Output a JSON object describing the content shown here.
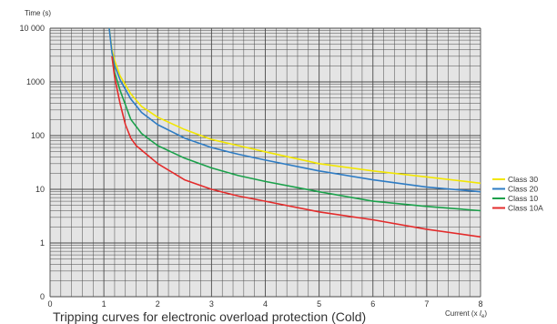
{
  "chart_data": {
    "type": "line",
    "title": "",
    "caption": "Tripping curves for electronic overload protection (Cold)",
    "xlabel": "Current (x Ie)",
    "xlabel_main": "Current (x ",
    "xlabel_sym": "I",
    "xlabel_sub": "e",
    "xlabel_end": ")",
    "ylabel": "Time (s)",
    "xlim": [
      0,
      8
    ],
    "y_scale": "log",
    "ylim": [
      1,
      10000
    ],
    "x_ticks": [
      "0",
      "1",
      "2",
      "3",
      "4",
      "5",
      "6",
      "7",
      "8"
    ],
    "y_ticks": [
      {
        "value": 1,
        "label": "1"
      },
      {
        "value": 10,
        "label": "10"
      },
      {
        "value": 100,
        "label": "100"
      },
      {
        "value": 1000,
        "label": "1000"
      },
      {
        "value": 10000,
        "label": "10 000"
      }
    ],
    "y_zero_label": "0",
    "grid": true,
    "legend_position": "right",
    "colors": {
      "background": "#e4e4e4",
      "grid": "#4a4a4a"
    },
    "series": [
      {
        "name": "Class 30",
        "color": "#f2e600",
        "x": [
          1.1,
          1.15,
          1.2,
          1.3,
          1.5,
          1.7,
          2,
          2.5,
          3,
          3.5,
          4,
          5,
          6,
          7,
          8
        ],
        "y": [
          10000,
          4000,
          2500,
          1300,
          600,
          350,
          220,
          130,
          85,
          65,
          50,
          30,
          22,
          17,
          13
        ]
      },
      {
        "name": "Class 20",
        "color": "#2e7cc4",
        "x": [
          1.1,
          1.15,
          1.2,
          1.3,
          1.5,
          1.7,
          2,
          2.5,
          3,
          3.5,
          4,
          5,
          6,
          7,
          8
        ],
        "y": [
          10000,
          3500,
          2000,
          1100,
          480,
          270,
          160,
          90,
          60,
          45,
          35,
          22,
          15,
          11,
          9
        ]
      },
      {
        "name": "Class 10",
        "color": "#1aa04a",
        "x": [
          1.15,
          1.2,
          1.3,
          1.5,
          1.7,
          2,
          2.5,
          3,
          3.5,
          4,
          5,
          6,
          7,
          8
        ],
        "y": [
          3000,
          1500,
          700,
          200,
          110,
          65,
          38,
          25,
          18,
          14,
          9,
          6,
          4.8,
          4
        ]
      },
      {
        "name": "Class 10A",
        "color": "#e32b2b",
        "x": [
          1.15,
          1.2,
          1.3,
          1.4,
          1.5,
          1.6,
          2,
          2.5,
          3,
          3.5,
          4,
          5,
          6,
          7,
          8
        ],
        "y": [
          3000,
          1200,
          400,
          160,
          90,
          65,
          30,
          15,
          10,
          7.5,
          6,
          3.8,
          2.7,
          1.8,
          1.3
        ]
      }
    ]
  }
}
